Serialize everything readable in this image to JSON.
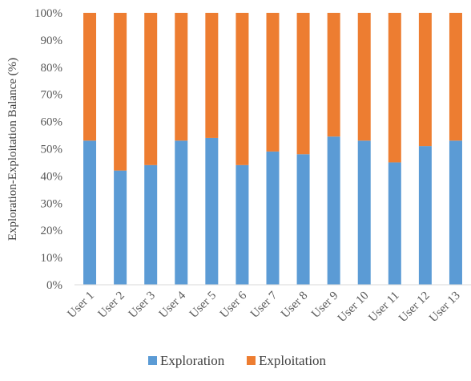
{
  "chart_data": {
    "type": "bar",
    "stacked": true,
    "normalized_percent": true,
    "title": "",
    "xlabel": "",
    "ylabel": "Exploration-Exploitation Balance (%)",
    "ylim": [
      0,
      100
    ],
    "yticks": [
      "0%",
      "10%",
      "20%",
      "30%",
      "40%",
      "50%",
      "60%",
      "70%",
      "80%",
      "90%",
      "100%"
    ],
    "categories": [
      "User 1",
      "User 2",
      "User 3",
      "User 4",
      "User 5",
      "User 6",
      "User 7",
      "User 8",
      "User 9",
      "User 10",
      "User 11",
      "User 12",
      "User 13"
    ],
    "series": [
      {
        "name": "Exploration",
        "color": "#5b9bd5",
        "values": [
          53,
          42,
          44,
          53,
          54,
          44,
          49,
          48,
          54.5,
          53,
          45,
          51,
          53
        ]
      },
      {
        "name": "Exploitation",
        "color": "#ed7d31",
        "values": [
          47,
          58,
          56,
          47,
          46,
          56,
          51,
          52,
          45.5,
          47,
          55,
          49,
          47
        ]
      }
    ],
    "grid": false,
    "legend_position": "bottom"
  }
}
